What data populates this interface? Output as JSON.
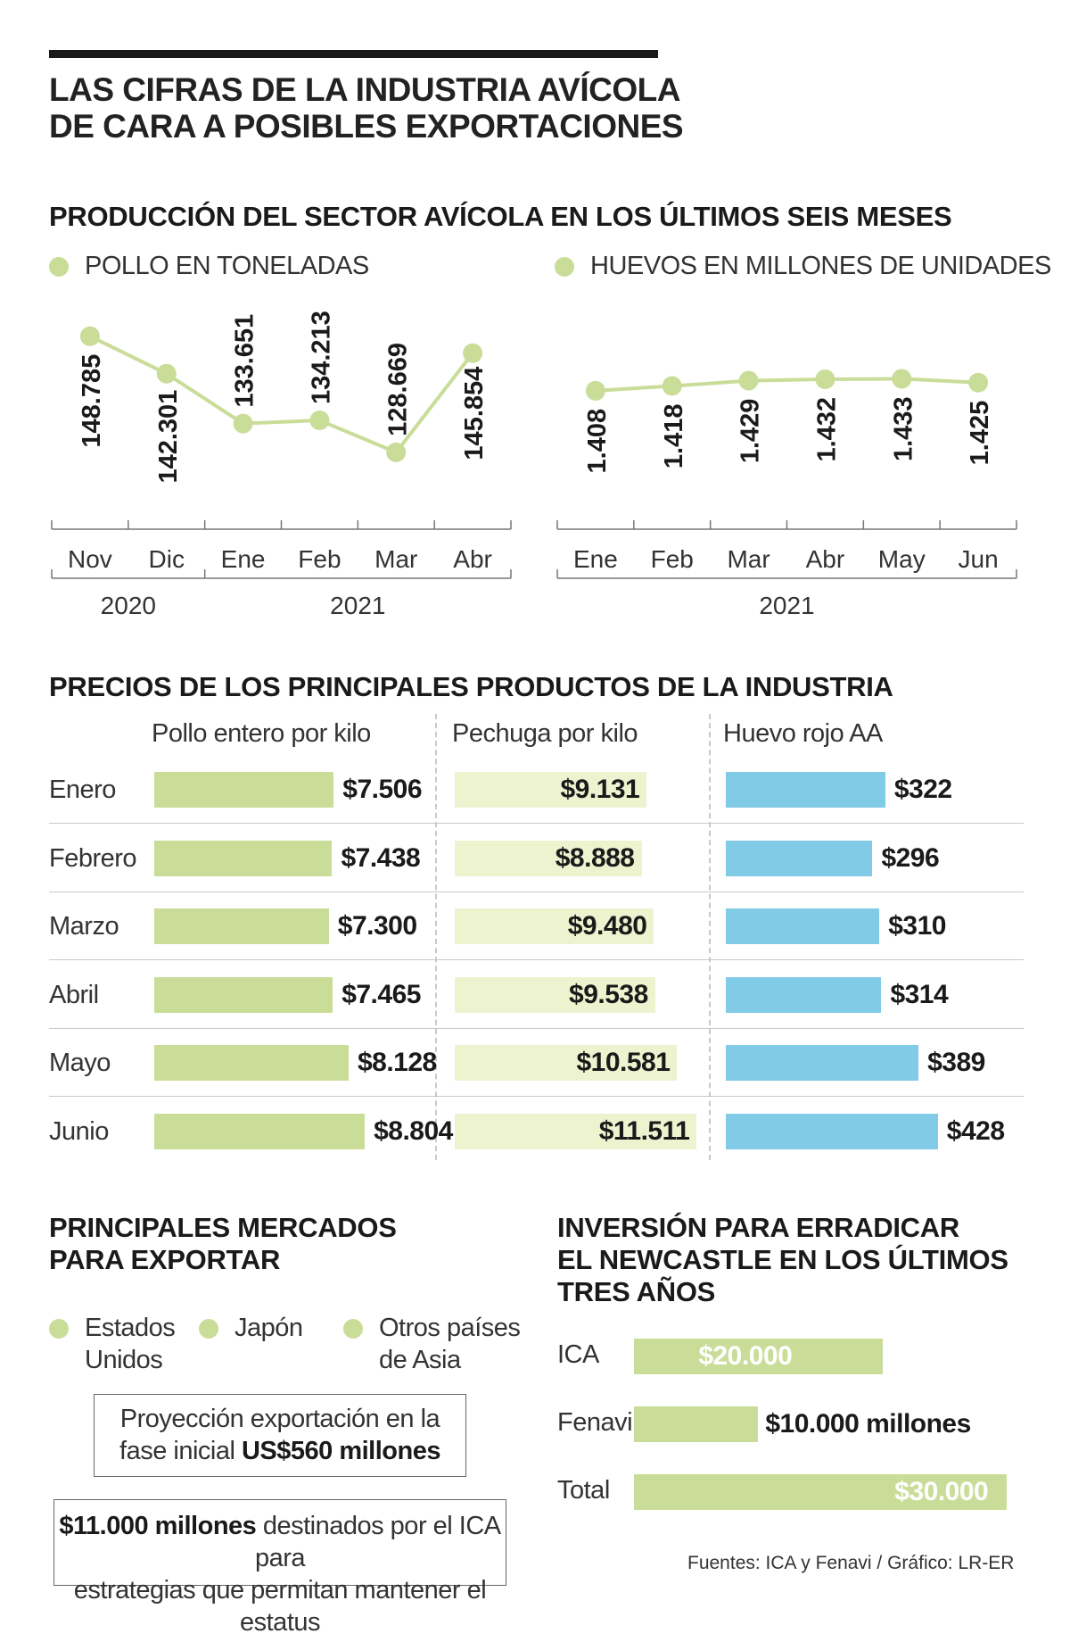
{
  "header": {
    "title_line1": "LAS CIFRAS DE LA INDUSTRIA AVÍCOLA",
    "title_line2": "DE CARA A POSIBLES EXPORTACIONES"
  },
  "production": {
    "title": "PRODUCCIÓN DEL SECTOR AVÍCOLA EN LOS ÚLTIMOS SEIS MESES"
  },
  "chart_data": [
    {
      "type": "line",
      "title": "POLLO EN TONELADAS",
      "legend": "POLLO EN TONELADAS",
      "color": "#c9dd98",
      "categories": [
        "Nov",
        "Dic",
        "Ene",
        "Feb",
        "Mar",
        "Abr"
      ],
      "years": [
        {
          "label": "2020",
          "span": [
            0,
            1
          ]
        },
        {
          "label": "2021",
          "span": [
            2,
            5
          ]
        }
      ],
      "values": [
        148785,
        142301,
        133651,
        134213,
        128669,
        145854
      ],
      "value_labels": [
        "148.785",
        "142.301",
        "133.651",
        "134.213",
        "128.669",
        "145.854"
      ],
      "ylim": [
        122000,
        152000
      ],
      "grid": false
    },
    {
      "type": "line",
      "title": "HUEVOS EN MILLONES DE UNIDADES",
      "legend": "HUEVOS EN MILLONES DE UNIDADES",
      "color": "#c9dd98",
      "categories": [
        "Ene",
        "Feb",
        "Mar",
        "Abr",
        "May",
        "Jun"
      ],
      "years": [
        {
          "label": "2021",
          "span": [
            0,
            5
          ]
        }
      ],
      "values": [
        1408,
        1418,
        1429,
        1432,
        1433,
        1425
      ],
      "value_labels": [
        "1.408",
        "1.418",
        "1.429",
        "1.432",
        "1.433",
        "1.425"
      ],
      "ylim": [
        1200,
        1560
      ],
      "grid": false
    },
    {
      "type": "bar",
      "title": "PRECIOS DE LOS PRINCIPALES PRODUCTOS DE LA INDUSTRIA",
      "categories": [
        "Enero",
        "Febrero",
        "Marzo",
        "Abril",
        "Mayo",
        "Junio"
      ],
      "series": [
        {
          "name": "Pollo entero por kilo",
          "color": "#c9dd98",
          "values": [
            7506,
            7438,
            7300,
            7465,
            8128,
            8804
          ],
          "labels": [
            "$7.506",
            "$7.438",
            "$7.300",
            "$7.465",
            "$8.128",
            "$8.804"
          ]
        },
        {
          "name": "Pechuga por kilo",
          "color": "#eef3cf",
          "values": [
            9131,
            8888,
            9480,
            9538,
            10581,
            11511
          ],
          "labels": [
            "$9.131",
            "$8.888",
            "$9.480",
            "$9.538",
            "$10.581",
            "$11.511"
          ]
        },
        {
          "name": "Huevo rojo AA",
          "color": "#82cbe6",
          "values": [
            322,
            296,
            310,
            314,
            389,
            428
          ],
          "labels": [
            "$322",
            "$296",
            "$310",
            "$314",
            "$389",
            "$428"
          ]
        }
      ]
    },
    {
      "type": "bar",
      "title": "INVERSIÓN PARA ERRADICAR EL NEWCASTLE EN LOS ÚLTIMOS TRES AÑOS",
      "categories": [
        "ICA",
        "Fenavi",
        "Total"
      ],
      "values": [
        20000,
        10000,
        30000
      ],
      "labels": [
        "$20.000 millones",
        "$10.000 millones",
        "$30.000 millones"
      ],
      "color": "#c9dd98"
    }
  ],
  "markets": {
    "title_line1": "PRINCIPALES MERCADOS",
    "title_line2": "PARA EXPORTAR",
    "items": [
      {
        "line1": "Estados",
        "line2": "Unidos"
      },
      {
        "line1": "Japón",
        "line2": ""
      },
      {
        "line1": "Otros países",
        "line2": "de Asia"
      }
    ],
    "projection_line1": "Proyección exportación en la",
    "projection_line2_prefix": "fase inicial ",
    "projection_value": "US$560 millones",
    "ica_value": "$11.000 millones",
    "ica_text_1": " destinados por el ICA para",
    "ica_text_2": "estrategias que permitan mantener el estatus"
  },
  "investment": {
    "title_line1": "INVERSIÓN PARA ERRADICAR",
    "title_line2": "EL NEWCASTLE EN LOS ÚLTIMOS",
    "title_line3": "TRES AÑOS"
  },
  "footer": {
    "source": "Fuentes: ICA y Fenavi / Gráfico: LR-ER"
  }
}
